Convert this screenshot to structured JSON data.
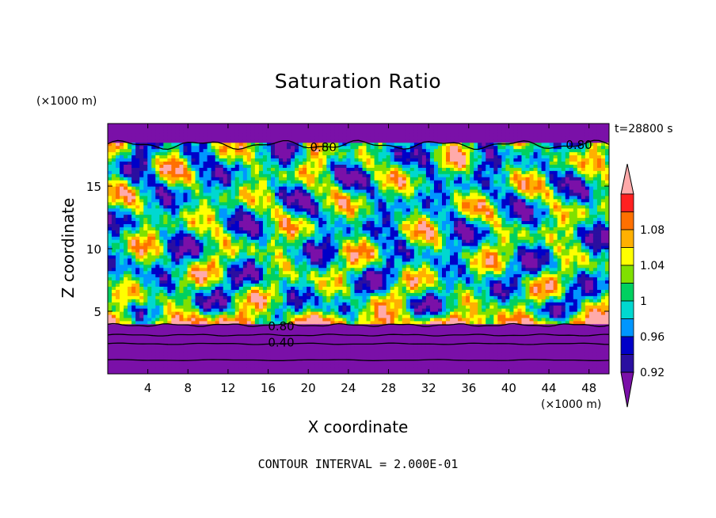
{
  "chart_data": {
    "type": "heatmap",
    "title": "Saturation Ratio",
    "xlabel": "X coordinate",
    "ylabel": "Z coordinate",
    "x_unit": "(×1000 m)",
    "y_unit": "(×1000 m)",
    "time_label": "t=28800 s",
    "footer": "CONTOUR INTERVAL = 2.000E-01",
    "xlim": [
      0,
      50
    ],
    "ylim": [
      0,
      20
    ],
    "x_ticks": [
      4,
      8,
      12,
      16,
      20,
      24,
      28,
      32,
      36,
      40,
      44,
      48
    ],
    "y_ticks": [
      5,
      10,
      15
    ],
    "contour_labels": [
      {
        "text": "0.80",
        "x": 21.5,
        "z": 18.1
      },
      {
        "text": "0.80",
        "x": 47.0,
        "z": 18.3
      },
      {
        "text": "0.80",
        "x": 17.3,
        "z": 3.8
      },
      {
        "text": "0.40",
        "x": 17.3,
        "z": 2.5
      }
    ],
    "colorbar": {
      "levels": [
        0.92,
        0.94,
        0.96,
        0.98,
        1.0,
        1.02,
        1.04,
        1.06,
        1.08,
        1.1
      ],
      "tick_labels": [
        "0.92",
        "0.96",
        "1",
        "1.04",
        "1.08"
      ],
      "colors": [
        "#7a10a8",
        "#2a0fa0",
        "#0000c8",
        "#0096ff",
        "#00d8d0",
        "#00d060",
        "#80e000",
        "#ffff00",
        "#ffb000",
        "#ff7000",
        "#ff2020",
        "#ffaaaa"
      ]
    }
  }
}
